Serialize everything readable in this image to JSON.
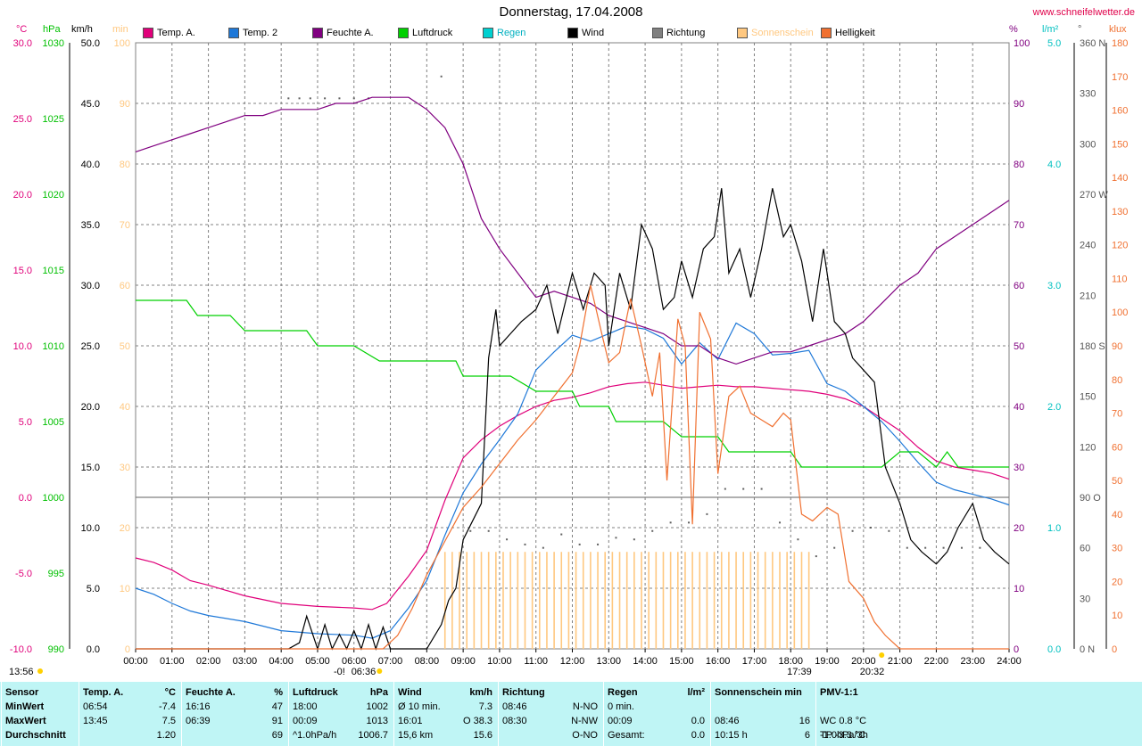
{
  "title": "Donnerstag, 17.04.2008",
  "website": "www.schneifelwetter.de",
  "unit_headers": {
    "temp": "°C",
    "press": "hPa",
    "wind": "km/h",
    "sun": "min",
    "hum": "%",
    "rain": "l/m²",
    "dir": "°",
    "lux": "klux"
  },
  "legend": [
    {
      "label": "Temp. A.",
      "color": "#e0007a"
    },
    {
      "label": "Temp. 2",
      "color": "#1e78d8"
    },
    {
      "label": "Feuchte A.",
      "color": "#800080"
    },
    {
      "label": "Luftdruck",
      "color": "#00d000"
    },
    {
      "label": "Regen",
      "color": "#00d0d0"
    },
    {
      "label": "Wind",
      "color": "#000000"
    },
    {
      "label": "Richtung",
      "color": "#808080"
    },
    {
      "label": "Sonnenschein",
      "color": "#ffc880"
    },
    {
      "label": "Helligkeit",
      "color": "#f07030"
    }
  ],
  "chart_data": {
    "type": "line",
    "x_ticks": [
      "00:00",
      "01:00",
      "02:00",
      "03:00",
      "04:00",
      "05:00",
      "06:00",
      "07:00",
      "08:00",
      "09:00",
      "10:00",
      "11:00",
      "12:00",
      "13:00",
      "14:00",
      "15:00",
      "16:00",
      "17:00",
      "18:00",
      "19:00",
      "20:00",
      "21:00",
      "22:00",
      "23:00",
      "24:00"
    ],
    "xlim": [
      0,
      24
    ],
    "axes": {
      "temp": {
        "ylim": [
          -10,
          30
        ],
        "ticks": [
          "30.0",
          "25.0",
          "20.0",
          "15.0",
          "10.0",
          "5.0",
          "0.0",
          "-5.0",
          "-10.0"
        ]
      },
      "press": {
        "ylim": [
          990,
          1030
        ],
        "ticks": [
          "1030",
          "1025",
          "1020",
          "1015",
          "1010",
          "1005",
          "1000",
          "995",
          "990"
        ]
      },
      "wind": {
        "ylim": [
          0,
          50
        ],
        "ticks": [
          "50.0",
          "45.0",
          "40.0",
          "35.0",
          "30.0",
          "25.0",
          "20.0",
          "15.0",
          "10.0",
          "5.0",
          "0.0"
        ]
      },
      "sun": {
        "ylim": [
          0,
          100
        ],
        "ticks": [
          "100",
          "90",
          "80",
          "70",
          "60",
          "50",
          "40",
          "30",
          "20",
          "10",
          "0"
        ]
      },
      "hum": {
        "ylim": [
          0,
          100
        ],
        "ticks": [
          "100",
          "90",
          "80",
          "70",
          "60",
          "50",
          "40",
          "30",
          "20",
          "10",
          "0"
        ]
      },
      "rain": {
        "ylim": [
          0,
          5
        ],
        "ticks": [
          "5.0",
          "4.0",
          "3.0",
          "2.0",
          "1.0",
          "0.0"
        ]
      },
      "dir": {
        "ylim": [
          0,
          360
        ],
        "ticks": [
          "360 N",
          "330",
          "300",
          "270 W",
          "240",
          "210",
          "180 S",
          "150",
          "120",
          "90 O",
          "60",
          "30",
          "0 N"
        ]
      },
      "lux": {
        "ylim": [
          0,
          180
        ],
        "ticks": [
          "180",
          "170",
          "160",
          "150",
          "140",
          "130",
          "120",
          "110",
          "100",
          "90",
          "80",
          "70",
          "60",
          "50",
          "40",
          "30",
          "20",
          "10",
          "0"
        ]
      }
    },
    "series": [
      {
        "name": "Temp. A.",
        "axis": "temp",
        "color": "#e0007a",
        "x": [
          0,
          0.5,
          1,
          1.5,
          2,
          3,
          4,
          5,
          6,
          6.5,
          6.9,
          7.5,
          8,
          8.5,
          9,
          9.5,
          10,
          10.5,
          11,
          11.5,
          12,
          12.5,
          13,
          13.5,
          14,
          14.5,
          15,
          15.5,
          16,
          16.5,
          17,
          17.5,
          18,
          18.5,
          19,
          19.5,
          20,
          20.5,
          21,
          21.5,
          22,
          22.5,
          23,
          23.5,
          24
        ],
        "y": [
          -4,
          -4.3,
          -4.8,
          -5.5,
          -5.8,
          -6.5,
          -7,
          -7.2,
          -7.3,
          -7.4,
          -7.0,
          -5.2,
          -3.5,
          -0.2,
          2.6,
          3.8,
          4.7,
          5.4,
          6.0,
          6.4,
          6.6,
          6.9,
          7.3,
          7.5,
          7.6,
          7.4,
          7.2,
          7.3,
          7.4,
          7.3,
          7.3,
          7.2,
          7.1,
          7.0,
          6.8,
          6.5,
          6.0,
          5.2,
          4.4,
          3.3,
          2.4,
          2.0,
          1.8,
          1.6,
          1.2
        ]
      },
      {
        "name": "Temp. 2",
        "axis": "temp",
        "color": "#1e78d8",
        "x": [
          0,
          0.5,
          1,
          1.5,
          2,
          3,
          4,
          5,
          6,
          6.5,
          7,
          7.5,
          8,
          8.5,
          9,
          9.5,
          10,
          10.5,
          11,
          11.5,
          12,
          12.5,
          13,
          13.5,
          14,
          14.5,
          15,
          15.5,
          16,
          16.5,
          17,
          17.5,
          18,
          18.5,
          19,
          19.5,
          20,
          20.5,
          21,
          21.5,
          22,
          22.5,
          23,
          23.5,
          24
        ],
        "y": [
          -6,
          -6.4,
          -7,
          -7.5,
          -7.8,
          -8.2,
          -8.8,
          -9.0,
          -9.1,
          -9.3,
          -8.8,
          -7.3,
          -5.5,
          -2.5,
          0.3,
          2.2,
          3.8,
          5.5,
          8.4,
          9.6,
          10.7,
          10.3,
          10.8,
          11.3,
          11.1,
          10.5,
          8.8,
          10.2,
          9.1,
          11.5,
          10.8,
          9.4,
          9.5,
          9.7,
          7.5,
          7.0,
          6.0,
          5.0,
          3.7,
          2.3,
          1.0,
          0.5,
          0.2,
          -0.1,
          -0.5
        ]
      },
      {
        "name": "Feuchte A.",
        "axis": "hum",
        "color": "#800080",
        "x": [
          0,
          0.5,
          1,
          1.5,
          2,
          2.5,
          3,
          3.5,
          4,
          4.5,
          5,
          5.5,
          6,
          6.5,
          7,
          7.5,
          8,
          8.5,
          9,
          9.5,
          10,
          10.5,
          11,
          11.5,
          12,
          12.5,
          13,
          13.5,
          14,
          14.5,
          15,
          15.5,
          16,
          16.5,
          17,
          17.5,
          18,
          18.5,
          19,
          19.5,
          20,
          20.5,
          21,
          21.5,
          22,
          22.5,
          23,
          23.5,
          24
        ],
        "y": [
          82,
          83,
          84,
          85,
          86,
          87,
          88,
          88,
          89,
          89,
          89,
          90,
          90,
          91,
          91,
          91,
          89,
          86,
          80,
          71,
          66,
          62,
          58,
          59,
          58,
          57,
          55,
          54,
          53,
          52,
          50,
          50,
          48,
          47,
          48,
          49,
          49,
          50,
          51,
          52,
          54,
          57,
          60,
          62,
          66,
          68,
          70,
          72,
          74
        ]
      },
      {
        "name": "Luftdruck",
        "axis": "press",
        "color": "#00d000",
        "x": [
          0,
          1,
          1.4,
          1.7,
          2,
          2.6,
          3,
          4,
          4.7,
          5,
          6,
          6.7,
          7,
          8,
          8.8,
          9,
          10,
          10.3,
          11,
          11.5,
          12,
          12.2,
          13,
          13.2,
          14,
          14.5,
          15,
          15.5,
          16,
          16.3,
          17,
          17.5,
          18,
          18.3,
          19,
          19.5,
          20,
          20.5,
          21,
          21.5,
          22,
          22.3,
          22.6,
          23,
          24
        ],
        "y": [
          1013,
          1013,
          1013,
          1012,
          1012,
          1012,
          1011,
          1011,
          1011,
          1010,
          1010,
          1009,
          1009,
          1009,
          1009,
          1008,
          1008,
          1008,
          1007,
          1007,
          1007,
          1006,
          1006,
          1005,
          1005,
          1005,
          1004,
          1004,
          1004,
          1003,
          1003,
          1003,
          1003,
          1002,
          1002,
          1002,
          1002,
          1002,
          1003,
          1003,
          1002,
          1003,
          1002,
          1002,
          1002
        ]
      },
      {
        "name": "Wind",
        "axis": "wind",
        "color": "#000000",
        "x": [
          0,
          3.5,
          4.2,
          4.5,
          4.7,
          5,
          5.2,
          5.4,
          5.6,
          5.8,
          6,
          6.2,
          6.4,
          6.6,
          6.8,
          7,
          8,
          8.4,
          8.6,
          8.8,
          9,
          9.5,
          9.7,
          9.9,
          10,
          10.3,
          10.6,
          11,
          11.3,
          11.6,
          12,
          12.3,
          12.6,
          12.9,
          13,
          13.3,
          13.6,
          13.9,
          14.2,
          14.5,
          14.8,
          15,
          15.3,
          15.6,
          15.9,
          16.1,
          16.3,
          16.6,
          16.9,
          17.2,
          17.5,
          17.8,
          18,
          18.3,
          18.6,
          18.9,
          19.2,
          19.5,
          19.7,
          20,
          20.3,
          20.6,
          21,
          21.3,
          21.6,
          22,
          22.3,
          22.6,
          23,
          23.3,
          23.6,
          24
        ],
        "y": [
          0,
          0,
          0,
          0.5,
          2.7,
          0,
          2.0,
          0,
          1.2,
          0,
          1.5,
          0,
          2.0,
          0,
          1.8,
          0,
          0,
          2,
          4,
          5,
          9,
          12,
          24,
          28,
          25,
          26,
          27,
          28,
          30,
          26,
          31,
          28,
          31,
          30,
          25,
          31,
          28,
          35,
          33,
          28,
          29,
          32,
          29,
          33,
          34,
          38,
          31,
          33,
          29,
          33,
          38,
          34,
          35,
          32,
          27,
          33,
          27,
          26,
          24,
          23,
          22,
          15,
          12,
          9,
          8,
          7,
          8,
          10,
          12,
          9,
          8,
          7
        ]
      },
      {
        "name": "Helligkeit",
        "axis": "lux",
        "color": "#f07030",
        "x": [
          0,
          6.8,
          7.2,
          7.6,
          8,
          8.5,
          9,
          9.5,
          10,
          10.5,
          11,
          11.5,
          12,
          12.2,
          12.5,
          12.8,
          13,
          13.3,
          13.6,
          13.9,
          14.2,
          14.4,
          14.6,
          14.9,
          15.1,
          15.3,
          15.5,
          15.8,
          16,
          16.3,
          16.6,
          16.9,
          17.2,
          17.5,
          17.8,
          18,
          18.3,
          18.6,
          19,
          19.3,
          19.6,
          20,
          20.3,
          20.6,
          21,
          24
        ],
        "y": [
          0,
          0,
          4,
          12,
          22,
          32,
          42,
          48,
          55,
          62,
          68,
          75,
          82,
          90,
          108,
          94,
          85,
          88,
          104,
          90,
          75,
          88,
          50,
          98,
          90,
          37,
          100,
          92,
          52,
          75,
          78,
          70,
          68,
          66,
          70,
          68,
          40,
          38,
          42,
          40,
          20,
          15,
          8,
          4,
          0,
          0
        ]
      }
    ],
    "sunshine_bars": {
      "name": "Sonnenschein",
      "axis": "sun",
      "color": "#ffc880",
      "start": 8.5,
      "end": 18.6,
      "step": 0.2,
      "value": 16
    },
    "direction_points": {
      "name": "Richtung",
      "axis": "dir",
      "x": [
        4.2,
        4.5,
        4.8,
        5.2,
        5.6,
        6.0,
        6.4,
        8.4,
        9.2,
        9.7,
        10.2,
        10.7,
        11.2,
        11.7,
        12.2,
        12.7,
        13.2,
        13.7,
        14.2,
        14.7,
        15.2,
        15.7,
        16.2,
        16.7,
        17.2,
        17.7,
        18.2,
        18.7,
        19.2,
        19.7,
        20.2,
        20.7,
        21.2,
        21.7,
        22.2,
        22.7,
        23.2
      ],
      "y": [
        327,
        327,
        327,
        327,
        327,
        327,
        327,
        340,
        70,
        70,
        65,
        62,
        60,
        68,
        62,
        62,
        66,
        65,
        70,
        75,
        75,
        80,
        95,
        95,
        95,
        75,
        65,
        55,
        60,
        70,
        72,
        70,
        60,
        60,
        60,
        60,
        60
      ]
    },
    "refs": {
      "sunrise": "06:36",
      "sunset": "20:32",
      "noon_marker": "13:56",
      "marker_1739": "17:39",
      "dash_marker": "-0!"
    }
  },
  "table": {
    "cols": [
      {
        "title": "Sensor",
        "unit": "",
        "rows": [
          "MinWert",
          "MaxWert",
          "Durchschnitt"
        ]
      },
      {
        "title": "Temp. A.",
        "unit": "°C",
        "time": [
          "06:54",
          "13:45",
          ""
        ],
        "val": [
          "-7.4",
          "7.5",
          "1.20"
        ]
      },
      {
        "title": "Feuchte A.",
        "unit": "%",
        "time": [
          "16:16",
          "06:39",
          ""
        ],
        "val": [
          "47",
          "91",
          "69"
        ]
      },
      {
        "title": "Luftdruck",
        "unit": "hPa",
        "time": [
          "18:00",
          "00:09",
          "^1.0hPa/h"
        ],
        "val": [
          "1002",
          "1013",
          "1006.7"
        ]
      },
      {
        "title": "Wind",
        "unit": "km/h",
        "time": [
          "Ø 10 min.",
          "16:01",
          "15,6 km"
        ],
        "val": [
          "7.3",
          "O 38.3",
          "15.6"
        ]
      },
      {
        "title": "Richtung",
        "unit": "",
        "time": [
          "08:46",
          "08:30",
          ""
        ],
        "val": [
          "N-NO",
          "N-NW",
          "O-NO"
        ]
      },
      {
        "title": "Regen",
        "unit": "l/m²",
        "time": [
          "0 min.",
          "00:09",
          "Gesamt:"
        ],
        "val": [
          "",
          "0.0",
          "0.0"
        ]
      },
      {
        "title": "Sonnenschein min",
        "unit": "",
        "time": [
          "",
          "08:46",
          "10:15 h"
        ],
        "val": [
          "",
          "16",
          "6"
        ]
      },
      {
        "title": "PMV-1:1",
        "unit": "",
        "time": [
          "",
          "WC 0.8 °C",
          "TP -3.3 °C"
        ],
        "extra": "-1.0hPa/3h",
        "val": [
          "",
          "",
          ""
        ]
      }
    ]
  }
}
